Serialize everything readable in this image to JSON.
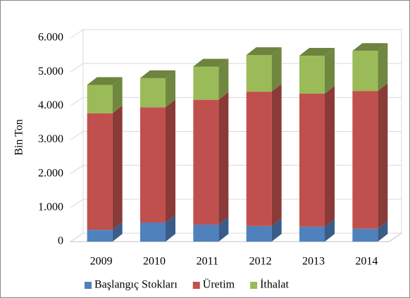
{
  "chart_data": {
    "type": "bar3d_stacked",
    "y_label": "Bin Ton",
    "categories": [
      "2009",
      "2010",
      "2011",
      "2012",
      "2013",
      "2014"
    ],
    "series": [
      {
        "name": "Başlangıç Stokları",
        "color": "#4f81bd",
        "values": [
          350,
          560,
          500,
          460,
          440,
          380
        ]
      },
      {
        "name": "Üretim",
        "color": "#c0504d",
        "values": [
          3430,
          3400,
          3680,
          3960,
          3920,
          4060
        ]
      },
      {
        "name": "İthalat",
        "color": "#9bbb59",
        "values": [
          840,
          860,
          980,
          1080,
          1120,
          1180
        ]
      }
    ],
    "ylim": [
      0,
      6000
    ],
    "yticks": [
      0,
      {
        "value": 1000,
        "label": "1.000"
      },
      {
        "value": 2000,
        "label": "2.000"
      },
      {
        "value": 3000,
        "label": "3.000"
      },
      {
        "value": 4000,
        "label": "4.000"
      },
      {
        "value": 5000,
        "label": "5.000"
      },
      {
        "value": 6000,
        "label": "6.000"
      }
    ],
    "grid": true,
    "legend": "bottom"
  }
}
